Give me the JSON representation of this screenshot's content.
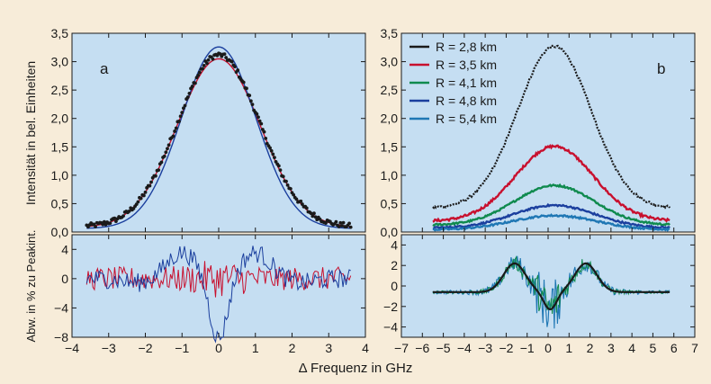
{
  "figure": {
    "xlabel": "Δ Frequenz in GHz",
    "ylabel_top": "Intensität in bel. Einheiten",
    "ylabel_bottom": "Abw. in % zu Peakint."
  },
  "colors": {
    "background": "#f7ecd9",
    "plot_bg": "#c5def2",
    "black": "#1a1a1a",
    "red": "#c8102e",
    "green": "#0f8a4e",
    "darkblue": "#1b3f9e",
    "lightblue": "#1f77b4"
  },
  "chart_data": [
    {
      "panel": "a",
      "type": "line",
      "label": "a",
      "xlim": [
        -4,
        4
      ],
      "ylim": [
        0,
        3.5
      ],
      "xticks": [
        -4,
        -3,
        -2,
        -1,
        0,
        1,
        2,
        3,
        4
      ],
      "yticks": [
        "0,0",
        "0,5",
        "1,0",
        "1,5",
        "2,0",
        "2,5",
        "3,0",
        "3,5"
      ],
      "series": [
        {
          "kind": "gaussian-fit",
          "color": "red",
          "center": 0,
          "amplitude": 2.97,
          "sigma": 1.13,
          "offset": 0.08,
          "x_range": [
            -3.6,
            3.6
          ]
        },
        {
          "kind": "gaussian-fit",
          "color": "darkblue",
          "center": 0,
          "amplitude": 3.2,
          "sigma": 1.02,
          "offset": 0.06,
          "x_range": [
            -3.6,
            3.6
          ]
        },
        {
          "kind": "data-points",
          "color": "black",
          "center": 0,
          "amplitude": 3.03,
          "sigma": 1.12,
          "offset": 0.09,
          "x_range": [
            -3.6,
            3.6
          ],
          "points": 180
        }
      ]
    },
    {
      "panel": "b",
      "type": "line",
      "label": "b",
      "xlim": [
        -7,
        7
      ],
      "ylim": [
        0,
        3.5
      ],
      "xticks": [
        -7,
        -6,
        -5,
        -4,
        -3,
        -2,
        -1,
        0,
        1,
        2,
        3,
        4,
        5,
        6,
        7
      ],
      "yticks": [
        "0,0",
        "0,5",
        "1,0",
        "1,5",
        "2,0",
        "2,5",
        "3,0",
        "3,5"
      ],
      "legend_position": "top-left",
      "series": [
        {
          "name": "R = 2,8 km",
          "color": "black",
          "center": 0.3,
          "amplitude": 2.85,
          "sigma": 1.75,
          "offset": 0.42,
          "x_range": [
            -5.5,
            5.8
          ]
        },
        {
          "name": "R = 3,5 km",
          "color": "red",
          "center": 0.3,
          "amplitude": 1.32,
          "sigma": 1.85,
          "offset": 0.19,
          "x_range": [
            -5.5,
            5.8
          ]
        },
        {
          "name": "R = 4,1 km",
          "color": "green",
          "center": 0.3,
          "amplitude": 0.7,
          "sigma": 1.9,
          "offset": 0.12,
          "x_range": [
            -5.5,
            5.8
          ]
        },
        {
          "name": "R = 4,8 km",
          "color": "darkblue",
          "center": 0.3,
          "amplitude": 0.4,
          "sigma": 1.95,
          "offset": 0.07,
          "x_range": [
            -5.5,
            5.8
          ]
        },
        {
          "name": "R = 5,4 km",
          "color": "lightblue",
          "center": 0.3,
          "amplitude": 0.25,
          "sigma": 2.0,
          "offset": 0.04,
          "x_range": [
            -5.5,
            5.8
          ]
        }
      ]
    },
    {
      "panel": "a-residual",
      "type": "line",
      "xlim": [
        -4,
        4
      ],
      "ylim": [
        -8,
        6
      ],
      "yticks": [
        -8,
        -4,
        0,
        4
      ],
      "series": [
        {
          "color": "red",
          "noise_amplitude": 1.6,
          "x_range": [
            -3.6,
            3.6
          ]
        },
        {
          "color": "darkblue",
          "noise_amplitude": 1.3,
          "x_range": [
            -3.6,
            3.6
          ],
          "structure": "W-shaped residual, +4 near ±1 GHz, -6 at 0 GHz"
        }
      ]
    },
    {
      "panel": "b-residual",
      "type": "line",
      "xlim": [
        -7,
        7
      ],
      "ylim": [
        -5,
        5
      ],
      "yticks": [
        -4,
        -2,
        0,
        2,
        4
      ],
      "series": [
        {
          "color": "lightblue",
          "noise_amplitude": 1.2,
          "x_range": [
            -5.5,
            5.8
          ]
        },
        {
          "color": "green",
          "noise_amplitude": 0.9,
          "x_range": [
            -5.5,
            5.8
          ]
        },
        {
          "color": "black",
          "kind": "smooth-fit",
          "description": "offset -0.6, +2.2 at ±1.7 GHz, -1.6 at 0 GHz",
          "x_range": [
            -5.5,
            5.8
          ]
        }
      ]
    }
  ]
}
